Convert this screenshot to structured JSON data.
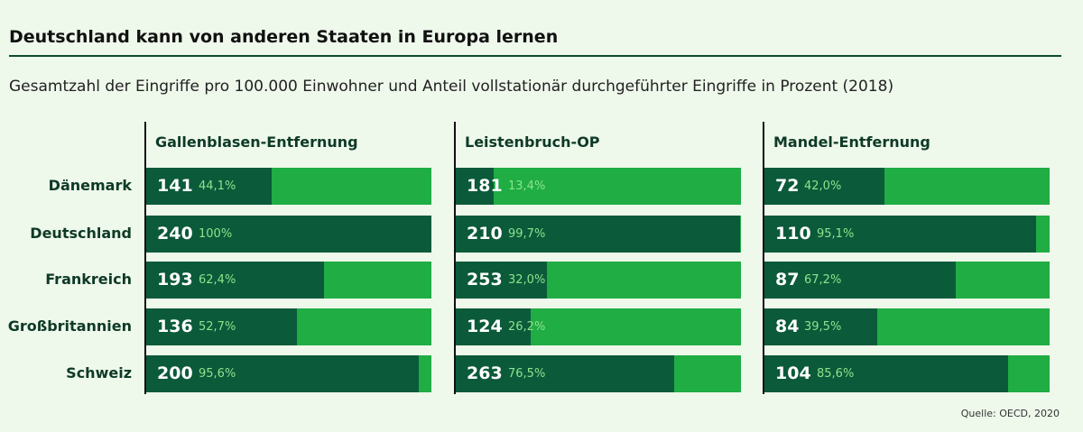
{
  "chart_data": {
    "type": "bar",
    "title": "Deutschland kann von anderen Staaten in Europa lernen",
    "subtitle": "Gesamtzahl der Eingriffe pro 100.000 Einwohner und Anteil vollstationär durchgeführter Eingriffe in Prozent (2018)",
    "categories": [
      "Dänemark",
      "Deutschland",
      "Frankreich",
      "Großbritannien",
      "Schweiz"
    ],
    "panels": [
      {
        "name": "Gallenblasen-Entfernung",
        "totals": [
          141,
          240,
          193,
          136,
          200
        ],
        "shares": [
          44.1,
          100,
          62.4,
          52.7,
          95.6
        ],
        "share_labels": [
          "44,1%",
          "100%",
          "62,4%",
          "52,7%",
          "95,6%"
        ]
      },
      {
        "name": "Leistenbruch-OP",
        "totals": [
          181,
          210,
          253,
          124,
          263
        ],
        "shares": [
          13.4,
          99.7,
          32.0,
          26.2,
          76.5
        ],
        "share_labels": [
          "13,4%",
          "99,7%",
          "32,0%",
          "26,2%",
          "76,5%"
        ]
      },
      {
        "name": "Mandel-Entfernung",
        "totals": [
          72,
          110,
          87,
          84,
          104
        ],
        "shares": [
          42.0,
          95.1,
          67.2,
          39.5,
          85.6
        ],
        "share_labels": [
          "42,0%",
          "95,1%",
          "67,2%",
          "39,5%",
          "85,6%"
        ]
      }
    ],
    "colors": {
      "inpatient": "#0b5a3a",
      "rest": "#1fad44"
    },
    "source": "Quelle: OECD, 2020"
  }
}
